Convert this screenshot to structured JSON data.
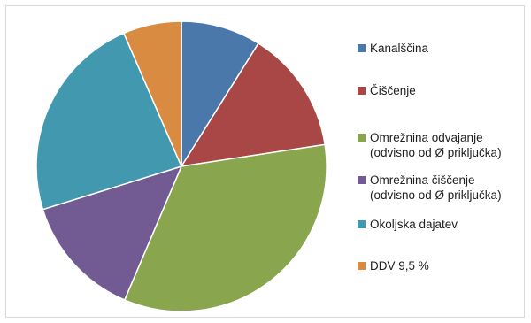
{
  "chart_data": {
    "type": "pie",
    "start_angle_deg": 0,
    "direction": "clockwise",
    "legend_position": "right",
    "slices": [
      {
        "label": "Kanalščina",
        "value": 8.9,
        "color": "#4a78aa"
      },
      {
        "label": "Čiščenje",
        "value": 13.7,
        "color": "#a84745"
      },
      {
        "label": "Omrežnina odvajanje\n(odvisno od Ø priključka)",
        "value": 33.8,
        "color": "#89a64e"
      },
      {
        "label": "Omrežnina čiščenje\n(odvisno od Ø priključka)",
        "value": 13.8,
        "color": "#725a92"
      },
      {
        "label": "Okoljska dajatev",
        "value": 23.3,
        "color": "#4298ae"
      },
      {
        "label": "DDV 9,5 %",
        "value": 6.5,
        "color": "#d98b42"
      }
    ]
  }
}
